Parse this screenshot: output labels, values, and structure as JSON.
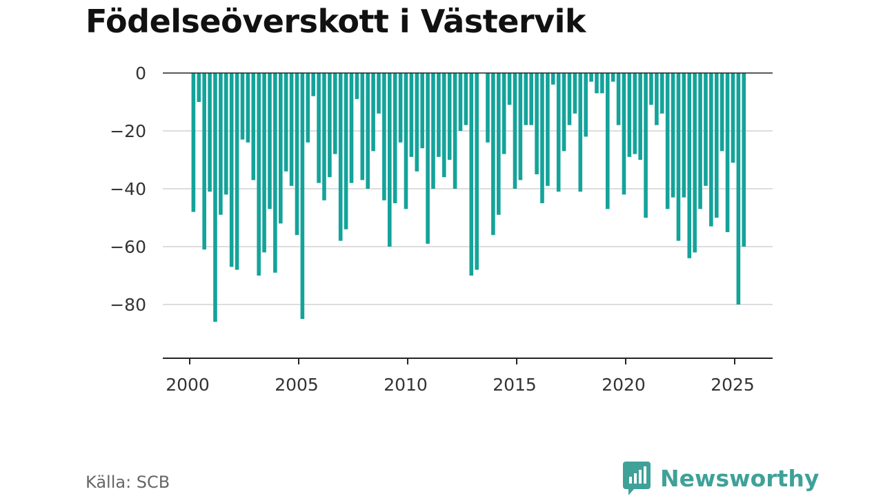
{
  "title": "Födelseöverskott i Västervik",
  "source": "Källa: SCB",
  "brand": {
    "name": "Newsworthy",
    "icon": "newsworthy-logo-icon",
    "color": "#3fa198"
  },
  "colors": {
    "bar": "#14a39a",
    "grid": "#dddddd",
    "axis": "#222222"
  },
  "chart_data": {
    "type": "bar",
    "title": "Födelseöverskott i Västervik",
    "xlabel": "",
    "ylabel": "",
    "ylim": [
      -98,
      0
    ],
    "yticks": [
      0,
      -20,
      -40,
      -60,
      -80
    ],
    "ytick_labels": [
      "0",
      "−20",
      "−40",
      "−60",
      "−80"
    ],
    "xticks": [
      2000,
      2005,
      2010,
      2015,
      2020,
      2025
    ],
    "xtick_labels": [
      "2000",
      "2005",
      "2010",
      "2015",
      "2020",
      "2025"
    ],
    "xlim": [
      2000,
      2026.5
    ],
    "grid": true,
    "x": [
      2000.17,
      2000.42,
      2000.67,
      2000.92,
      2001.17,
      2001.42,
      2001.67,
      2001.92,
      2002.17,
      2002.42,
      2002.67,
      2002.92,
      2003.17,
      2003.42,
      2003.67,
      2003.92,
      2004.17,
      2004.42,
      2004.67,
      2004.92,
      2005.17,
      2005.42,
      2005.67,
      2005.92,
      2006.17,
      2006.42,
      2006.67,
      2006.92,
      2007.17,
      2007.42,
      2007.67,
      2007.92,
      2008.17,
      2008.42,
      2008.67,
      2008.92,
      2009.17,
      2009.42,
      2009.67,
      2009.92,
      2010.17,
      2010.42,
      2010.67,
      2010.92,
      2011.17,
      2011.42,
      2011.67,
      2011.92,
      2012.17,
      2012.42,
      2012.67,
      2012.92,
      2013.17,
      2013.42,
      2013.67,
      2013.92,
      2014.17,
      2014.42,
      2014.67,
      2014.92,
      2015.17,
      2015.42,
      2015.67,
      2015.92,
      2016.17,
      2016.42,
      2016.67,
      2016.92,
      2017.17,
      2017.42,
      2017.67,
      2017.92,
      2018.17,
      2018.42,
      2018.67,
      2018.92,
      2019.17,
      2019.42,
      2019.67,
      2019.92,
      2020.17,
      2020.42,
      2020.67,
      2020.92,
      2021.17,
      2021.42,
      2021.67,
      2021.92,
      2022.17,
      2022.42,
      2022.67,
      2022.92,
      2023.17,
      2023.42,
      2023.67,
      2023.92,
      2024.17,
      2024.42,
      2024.67,
      2024.92,
      2025.17,
      2025.42
    ],
    "values": [
      -48,
      -10,
      -61,
      -41,
      -86,
      -49,
      -42,
      -67,
      -68,
      -23,
      -24,
      -37,
      -70,
      -62,
      -47,
      -69,
      -52,
      -34,
      -39,
      -56,
      -85,
      -24,
      -8,
      -38,
      -44,
      -36,
      -28,
      -58,
      -54,
      -38,
      -9,
      -37,
      -40,
      -27,
      -14,
      -44,
      -60,
      -45,
      -24,
      -47,
      -29,
      -34,
      -26,
      -59,
      -40,
      -29,
      -36,
      -30,
      -40,
      -20,
      -18,
      -70,
      -68,
      0,
      -24,
      -56,
      -49,
      -28,
      -11,
      -40,
      -37,
      -18,
      -18,
      -35,
      -45,
      -39,
      -4,
      -41,
      -27,
      -18,
      -14,
      -41,
      -22,
      -3,
      -7,
      -7,
      -47,
      -3,
      -18,
      -42,
      -29,
      -28,
      -30,
      -50,
      -11,
      -18,
      -14,
      -47,
      -43,
      -58,
      -43,
      -64,
      -62,
      -47,
      -39,
      -53,
      -50,
      -27,
      -55,
      -31,
      -80,
      -60
    ]
  }
}
